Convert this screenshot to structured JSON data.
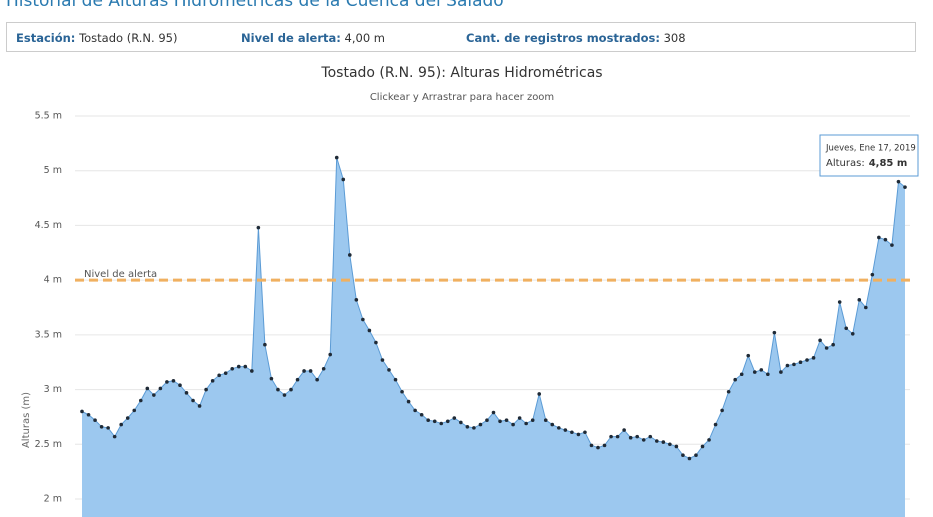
{
  "header": {
    "title": "Historial de Alturas Hidrométricas de la Cuenca del Salado"
  },
  "info": [
    {
      "label": "Estación:",
      "value": "Tostado (R.N. 95)"
    },
    {
      "label": "Nivel de alerta:",
      "value": "4,00 m"
    },
    {
      "label": "Cant. de registros mostrados:",
      "value": "308"
    }
  ],
  "chart_data": {
    "type": "area",
    "title": "Tostado (R.N. 95): Alturas Hidrométricas",
    "subtitle": "Clickear y Arrastrar para hacer zoom",
    "y_label": "Alturas (m)",
    "color": "#5b9bd5",
    "fill": "#9cc8ef",
    "marker_color": "#1f2a36",
    "values": [
      2.8,
      2.77,
      2.72,
      2.66,
      2.65,
      2.57,
      2.68,
      2.74,
      2.81,
      2.9,
      3.01,
      2.95,
      3.01,
      3.07,
      3.08,
      3.04,
      2.97,
      2.9,
      2.85,
      3.0,
      3.08,
      3.13,
      3.15,
      3.19,
      3.21,
      3.21,
      3.17,
      4.48,
      3.41,
      3.1,
      3.0,
      2.95,
      3.0,
      3.09,
      3.17,
      3.17,
      3.09,
      3.19,
      3.32,
      5.12,
      4.92,
      4.23,
      3.82,
      3.64,
      3.54,
      3.43,
      3.27,
      3.18,
      3.09,
      2.98,
      2.89,
      2.81,
      2.77,
      2.72,
      2.71,
      2.69,
      2.71,
      2.74,
      2.7,
      2.66,
      2.65,
      2.68,
      2.72,
      2.79,
      2.71,
      2.72,
      2.68,
      2.74,
      2.69,
      2.72,
      2.96,
      2.72,
      2.68,
      2.65,
      2.63,
      2.61,
      2.59,
      2.61,
      2.49,
      2.47,
      2.49,
      2.57,
      2.57,
      2.63,
      2.56,
      2.57,
      2.54,
      2.57,
      2.53,
      2.52,
      2.5,
      2.48,
      2.4,
      2.37,
      2.4,
      2.48,
      2.54,
      2.68,
      2.81,
      2.98,
      3.09,
      3.14,
      3.31,
      3.16,
      3.18,
      3.14,
      3.52,
      3.16,
      3.22,
      3.23,
      3.25,
      3.27,
      3.29,
      3.45,
      3.38,
      3.41,
      3.8,
      3.56,
      3.51,
      3.82,
      3.75,
      4.05,
      4.39,
      4.37,
      4.32,
      4.9,
      4.85
    ],
    "ylim": [
      2,
      5.5
    ],
    "yticks": [
      {
        "value": 2,
        "label": "2 m"
      },
      {
        "value": 2.5,
        "label": "2.5 m"
      },
      {
        "value": 3,
        "label": "3 m"
      },
      {
        "value": 3.5,
        "label": "3.5 m"
      },
      {
        "value": 4,
        "label": "4 m"
      },
      {
        "value": 4.5,
        "label": "4.5 m"
      },
      {
        "value": 5,
        "label": "5 m"
      },
      {
        "value": 5.5,
        "label": "5.5 m"
      }
    ],
    "grid": true,
    "alert_line": {
      "value": 4,
      "label": "Nivel de alerta",
      "color": "#f0b060"
    },
    "tooltip": {
      "date": "Jueves, Ene 17, 2019",
      "label": "Alturas:",
      "value": "4,85 m"
    }
  }
}
